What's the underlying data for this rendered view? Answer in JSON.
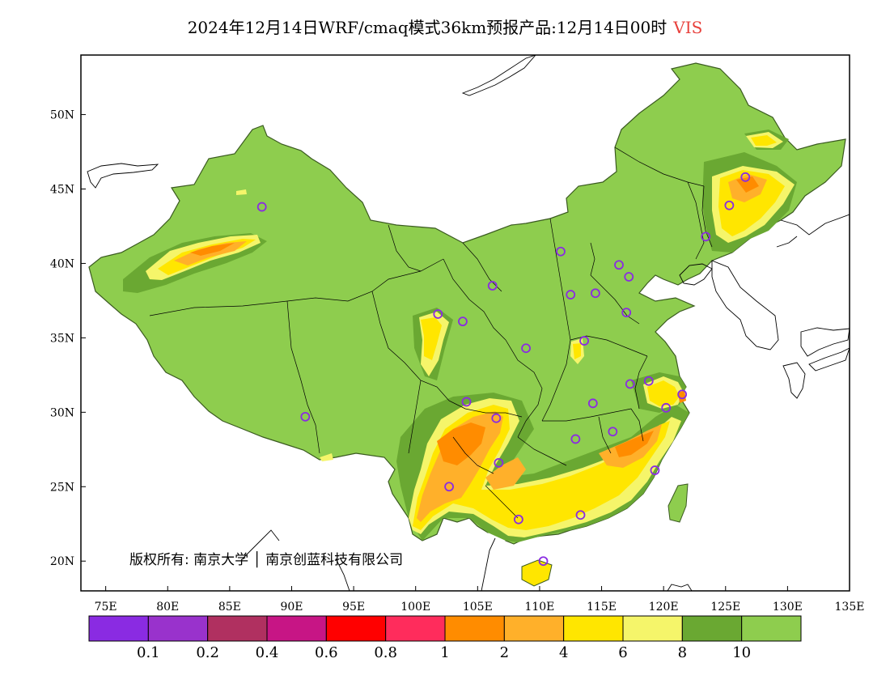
{
  "title": {
    "text": "2024年12月14日WRF/cmaq模式36km预报产品:12月14日00时",
    "variable": "VIS",
    "variable_color": "#e8413c"
  },
  "map": {
    "lon_range": [
      73,
      135
    ],
    "lat_range": [
      18,
      54
    ],
    "lat_ticks": [
      "20N",
      "25N",
      "30N",
      "35N",
      "40N",
      "45N",
      "50N"
    ],
    "lon_ticks": [
      "75E",
      "80E",
      "85E",
      "90E",
      "95E",
      "100E",
      "105E",
      "110E",
      "115E",
      "120E",
      "125E",
      "130E",
      "135E"
    ],
    "copyright": "版权所有: 南京大学 │ 南京创蓝科技有限公司",
    "stations": [
      [
        87.6,
        43.8
      ],
      [
        91.1,
        29.7
      ],
      [
        101.8,
        36.6
      ],
      [
        103.8,
        36.1
      ],
      [
        106.2,
        38.5
      ],
      [
        111.7,
        40.8
      ],
      [
        116.4,
        39.9
      ],
      [
        117.2,
        39.1
      ],
      [
        114.5,
        38.0
      ],
      [
        112.5,
        37.9
      ],
      [
        117.0,
        36.7
      ],
      [
        113.6,
        34.8
      ],
      [
        108.9,
        34.3
      ],
      [
        104.1,
        30.7
      ],
      [
        106.5,
        29.6
      ],
      [
        106.7,
        26.6
      ],
      [
        102.7,
        25.0
      ],
      [
        108.3,
        22.8
      ],
      [
        113.3,
        23.1
      ],
      [
        110.3,
        20.0
      ],
      [
        112.9,
        28.2
      ],
      [
        114.3,
        30.6
      ],
      [
        115.9,
        28.7
      ],
      [
        117.3,
        31.9
      ],
      [
        118.8,
        32.1
      ],
      [
        120.2,
        30.3
      ],
      [
        121.5,
        31.2
      ],
      [
        119.3,
        26.1
      ],
      [
        123.4,
        41.8
      ],
      [
        125.3,
        43.9
      ],
      [
        126.6,
        45.8
      ]
    ],
    "station_color": "#8a2be2"
  },
  "colorbar": {
    "colors": [
      "#8a2be2",
      "#9932cc",
      "#b03060",
      "#c71585",
      "#ff0000",
      "#ff2c5c",
      "#ff8c00",
      "#ffb02a",
      "#ffe600",
      "#f5f56a",
      "#6aa832",
      "#8ecd4e"
    ],
    "labels": [
      "0.1",
      "0.2",
      "0.4",
      "0.6",
      "0.8",
      "1",
      "2",
      "4",
      "6",
      "8",
      "10"
    ]
  },
  "fill_colors": {
    "land": "#8ecd4e",
    "v8_10": "#6aa832",
    "v6_8": "#f5f56a",
    "v4_6": "#ffe600",
    "v2_4": "#ffb02a",
    "v1_2": "#ff8c00"
  }
}
